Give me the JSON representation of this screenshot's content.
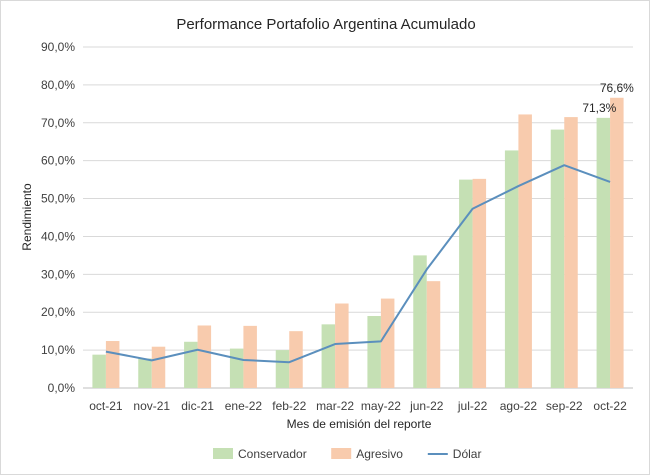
{
  "chart_data": {
    "type": "bar",
    "title": "Performance Portafolio Argentina Acumulado",
    "xlabel": "Mes de emisión del reporte",
    "ylabel": "Rendimiento",
    "categories": [
      "oct-21",
      "nov-21",
      "dic-21",
      "ene-22",
      "feb-22",
      "mar-22",
      "may-22",
      "jun-22",
      "jul-22",
      "ago-22",
      "sep-22",
      "oct-22"
    ],
    "y_ticks": [
      "0,0%",
      "10,0%",
      "20,0%",
      "30,0%",
      "40,0%",
      "50,0%",
      "60,0%",
      "70,0%",
      "80,0%",
      "90,0%"
    ],
    "ylim": [
      0,
      90
    ],
    "grid": true,
    "legend_position": "bottom",
    "series": [
      {
        "name": "Conservador",
        "type": "bar",
        "color": "#c5e0b4",
        "values": [
          8.8,
          7.8,
          12.2,
          10.4,
          10.0,
          16.8,
          19.0,
          35.0,
          55.0,
          62.7,
          68.2,
          71.3
        ]
      },
      {
        "name": "Agresivo",
        "type": "bar",
        "color": "#f8cbad",
        "values": [
          12.4,
          10.9,
          16.5,
          16.4,
          15.0,
          22.3,
          23.6,
          28.2,
          55.2,
          72.2,
          71.5,
          76.6
        ]
      },
      {
        "name": "Dólar",
        "type": "line",
        "color": "#5b8fbd",
        "values": [
          9.6,
          7.3,
          10.1,
          7.4,
          6.8,
          11.6,
          12.3,
          31.3,
          47.3,
          53.3,
          58.8,
          54.4
        ]
      }
    ],
    "data_labels": [
      {
        "series": "Conservador",
        "category": "oct-22",
        "text": "71,3%"
      },
      {
        "series": "Agresivo",
        "category": "oct-22",
        "text": "76,6%"
      }
    ]
  }
}
